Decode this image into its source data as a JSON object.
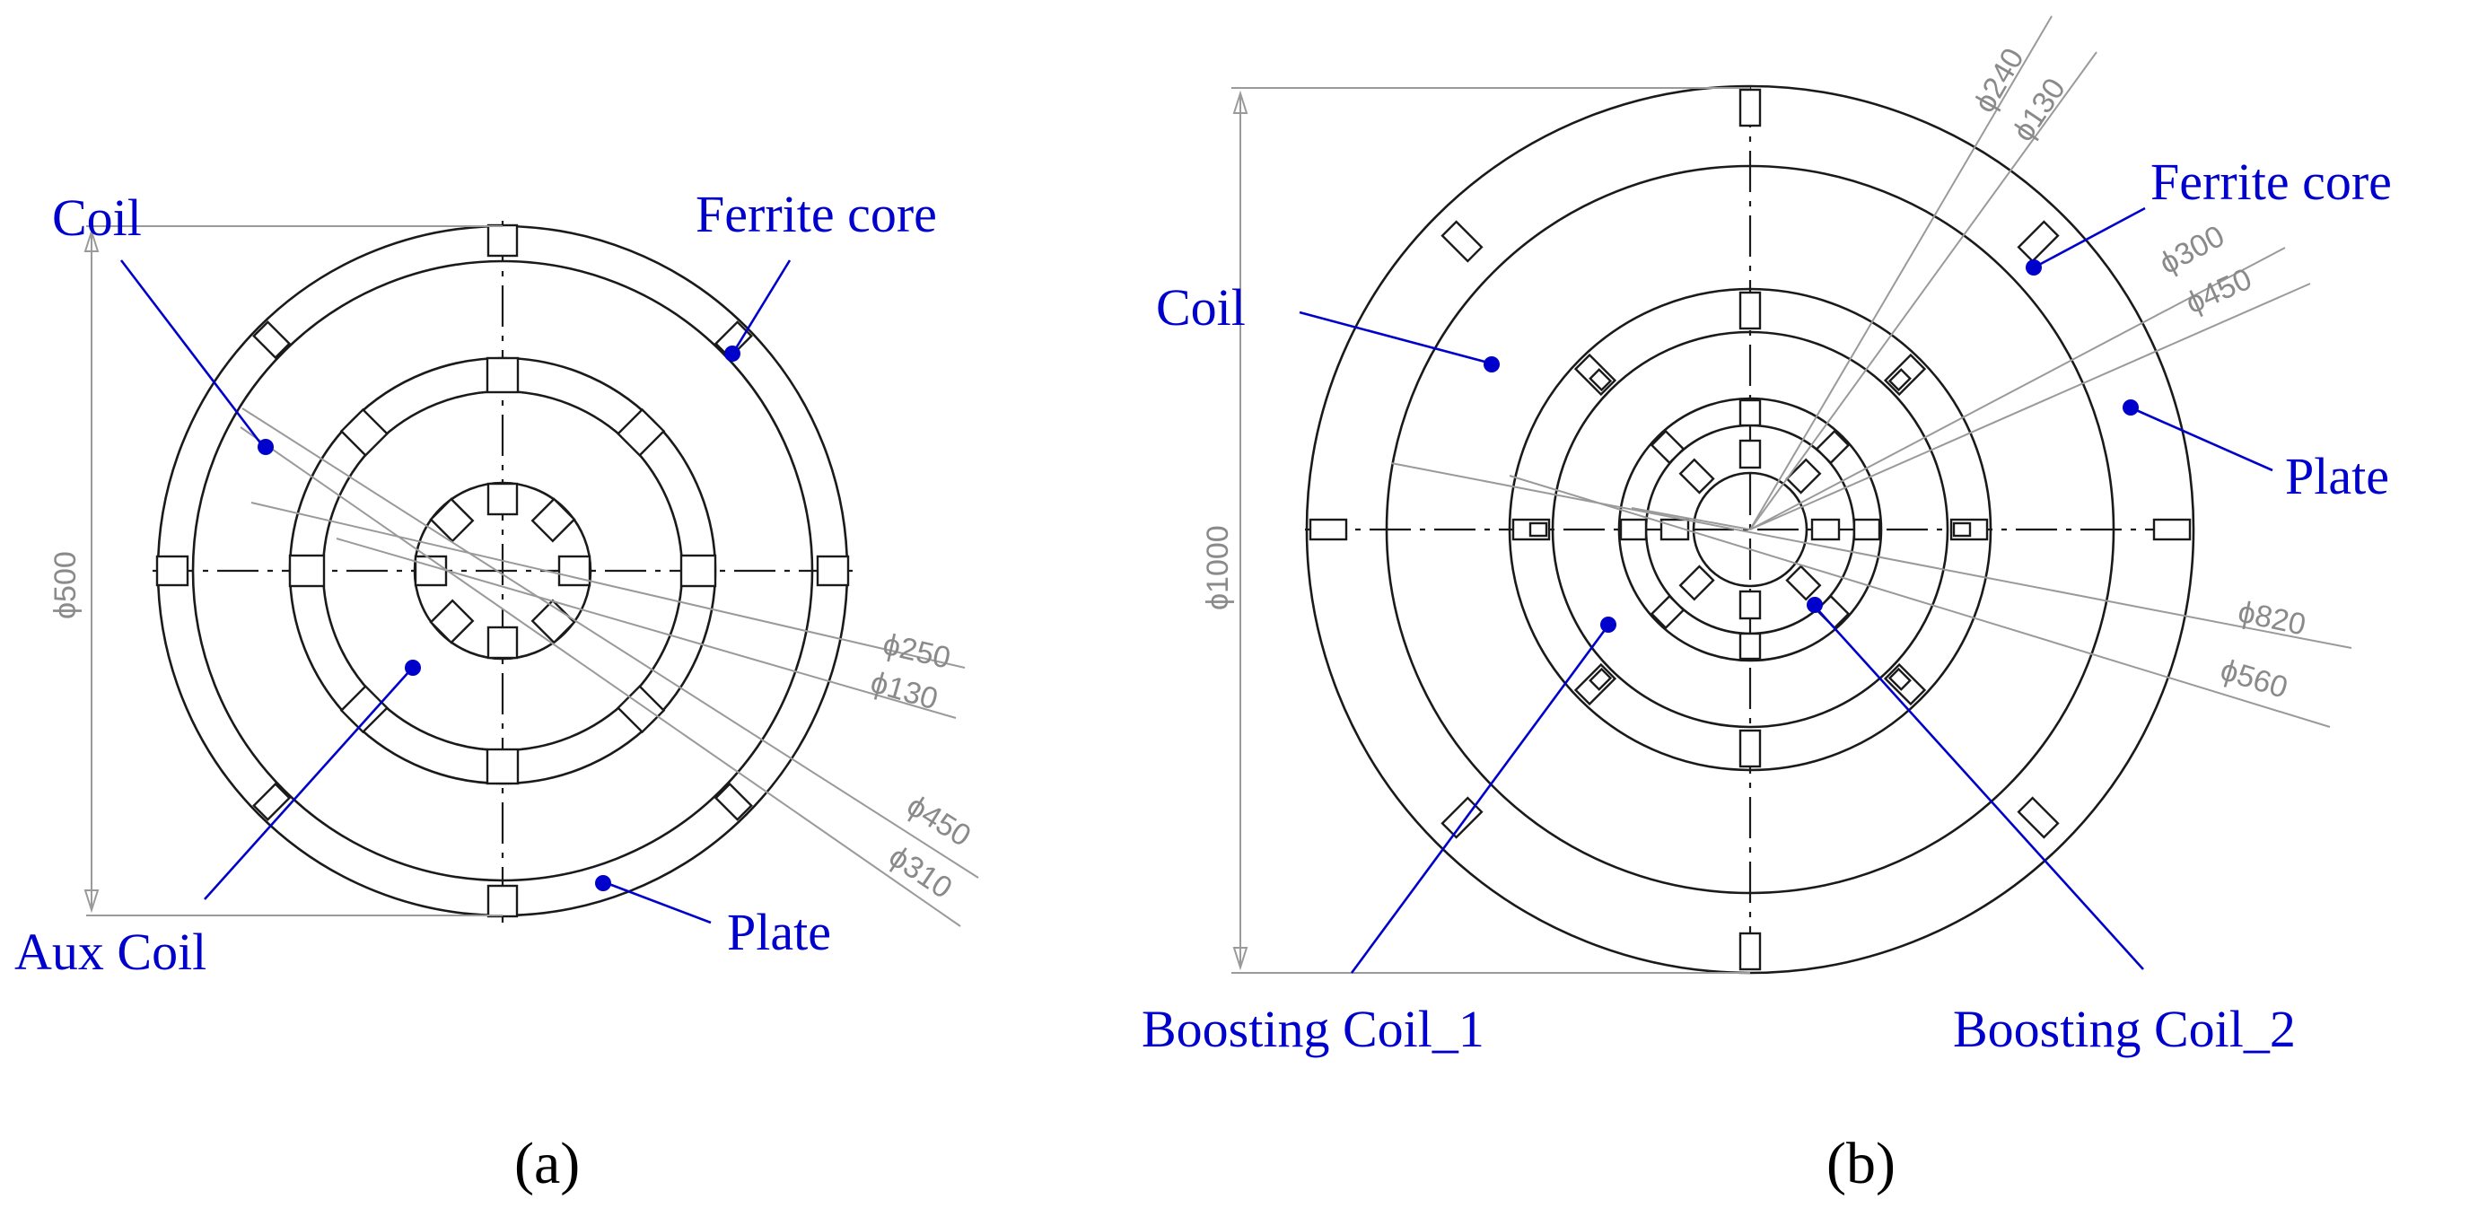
{
  "panels": [
    {
      "caption": "(a)",
      "labels": {
        "coil": "Coil",
        "ferrite_core": "Ferrite core",
        "aux_coil": "Aux Coil",
        "plate": "Plate"
      },
      "dimensions": {
        "overall": "ϕ500",
        "d250": "ϕ250",
        "d130": "ϕ130",
        "d450": "ϕ450",
        "d310": "ϕ310"
      }
    },
    {
      "caption": "(b)",
      "labels": {
        "coil": "Coil",
        "ferrite_core": "Ferrite core",
        "plate": "Plate",
        "boosting_coil_1": "Boosting Coil_1",
        "boosting_coil_2": "Boosting Coil_2"
      },
      "dimensions": {
        "overall": "ϕ1000",
        "d240": "ϕ240",
        "d130": "ϕ130",
        "d300": "ϕ300",
        "d450": "ϕ450",
        "d820": "ϕ820",
        "d560": "ϕ560"
      }
    }
  ],
  "colors": {
    "label": "#0000cc",
    "line": "#1a1a1a",
    "dimension": "#8a8a8a"
  }
}
